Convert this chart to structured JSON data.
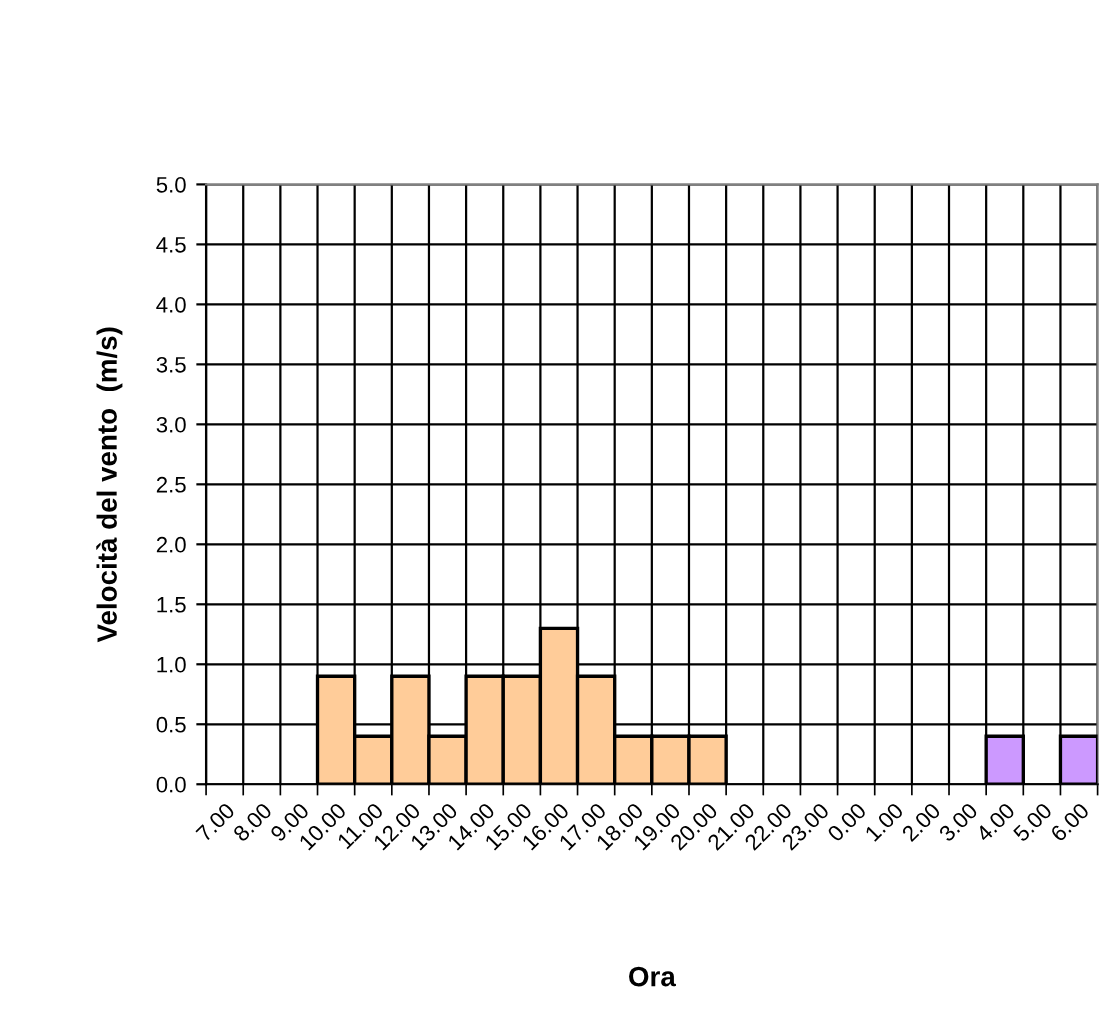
{
  "chart_data": {
    "type": "bar",
    "xlabel": "Ora",
    "ylabel": "Velocità del vento  (m/s)",
    "categories": [
      "7.00",
      "8.00",
      "9.00",
      "10.00",
      "11.00",
      "12.00",
      "13.00",
      "14.00",
      "15.00",
      "16.00",
      "17.00",
      "18.00",
      "19.00",
      "20.00",
      "21.00",
      "22.00",
      "23.00",
      "0.00",
      "1.00",
      "2.00",
      "3.00",
      "4.00",
      "5.00",
      "6.00"
    ],
    "values": [
      null,
      null,
      null,
      0.9,
      0.4,
      0.9,
      0.4,
      0.9,
      0.9,
      1.3,
      0.9,
      0.4,
      0.4,
      0.4,
      null,
      null,
      null,
      null,
      null,
      null,
      null,
      0.4,
      null,
      0.4
    ],
    "colors": [
      "#ffcc99",
      "#ffcc99",
      "#ffcc99",
      "#ffcc99",
      "#ffcc99",
      "#ffcc99",
      "#ffcc99",
      "#ffcc99",
      "#ffcc99",
      "#ffcc99",
      "#ffcc99",
      "#ffcc99",
      "#ffcc99",
      "#ffcc99",
      "#ffcc99",
      "#ffcc99",
      "#ffcc99",
      "#ffcc99",
      "#ffcc99",
      "#ffcc99",
      "#ffcc99",
      "#cc99ff",
      "#ffcc99",
      "#cc99ff"
    ],
    "ylim": [
      0,
      5
    ],
    "yticks": [
      {
        "value": 0,
        "label": "0.0"
      },
      0.5,
      {
        "value": 1,
        "label": "1.0"
      },
      1.5,
      {
        "value": 2,
        "label": "2.0"
      },
      2.5,
      {
        "value": 3,
        "label": "3.0"
      },
      3.5,
      {
        "value": 4,
        "label": "4.0"
      },
      4.5,
      {
        "value": 5,
        "label": "5.0"
      }
    ],
    "grid": true,
    "legend": false
  }
}
